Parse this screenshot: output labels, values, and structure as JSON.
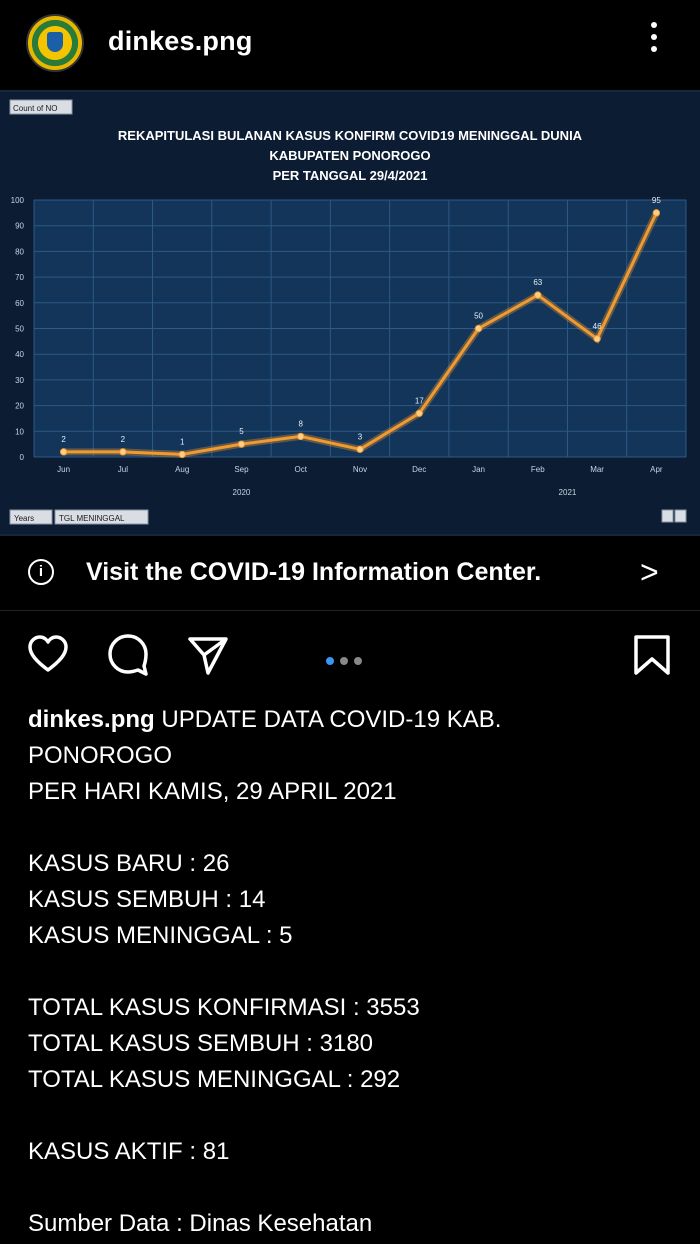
{
  "header": {
    "username": "dinkes.png",
    "more_icon": "more-vertical-icon"
  },
  "chart_data": {
    "type": "line",
    "title": "REKAPITULASI BULANAN KASUS KONFIRM COVID19 MENINGGAL DUNIA",
    "title_line2": "KABUPATEN PONOROGO",
    "title_line3": "PER TANGGAL 29/4/2021",
    "field_label": "Count of NO",
    "categories": [
      "Jun",
      "Jul",
      "Aug",
      "Sep",
      "Oct",
      "Nov",
      "Dec",
      "Jan",
      "Feb",
      "Mar",
      "Apr"
    ],
    "year_groups": [
      {
        "label": "2020",
        "from": 0,
        "to": 6
      },
      {
        "label": "2021",
        "from": 7,
        "to": 10
      }
    ],
    "values": [
      2,
      2,
      1,
      5,
      8,
      3,
      17,
      50,
      63,
      46,
      95
    ],
    "ylim": [
      0,
      100
    ],
    "yticks": [
      0,
      10,
      20,
      30,
      40,
      50,
      60,
      70,
      80,
      90,
      100
    ],
    "grid": true,
    "line_color": "#f39a2e",
    "filter_buttons": [
      "Years",
      "TGL MENINGGAL"
    ]
  },
  "info_bar": {
    "text": "Visit the COVID-19 Information Center.",
    "icon": "info-icon",
    "chevron": ">"
  },
  "actions": {
    "like_icon": "heart-icon",
    "comment_icon": "comment-icon",
    "share_icon": "send-icon",
    "save_icon": "bookmark-icon",
    "accent": "#3897f0"
  },
  "caption": {
    "username": "dinkes.png",
    "lines": [
      " UPDATE DATA COVID-19 KAB.",
      "PONOROGO",
      "PER HARI KAMIS, 29 APRIL 2021",
      "",
      "KASUS BARU : 26",
      "KASUS SEMBUH : 14",
      "KASUS MENINGGAL : 5",
      "",
      "TOTAL KASUS KONFIRMASI : 3553",
      "TOTAL KASUS SEMBUH : 3180",
      "TOTAL KASUS MENINGGAL : 292",
      "",
      "KASUS AKTIF : 81",
      "",
      "Sumber Data : Dinas Kesehatan"
    ]
  }
}
